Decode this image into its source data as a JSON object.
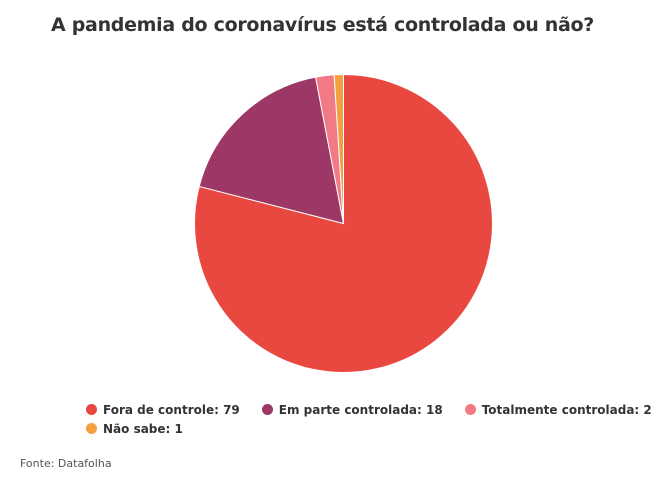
{
  "chart_data": {
    "type": "pie",
    "title": "A pandemia do coronavírus está controlada ou não?",
    "categories": [
      "Fora de controle",
      "Em parte controlada",
      "Totalmente controlada",
      "Não sabe"
    ],
    "values": [
      79,
      18,
      2,
      1
    ],
    "colors": [
      "#e8483f",
      "#9c3766",
      "#f27a85",
      "#f4a041"
    ],
    "legend_labels": [
      "Fora de controle: 79",
      "Em parte controlada: 18",
      "Totalmente controlada: 2",
      "Não sabe: 1"
    ],
    "legend_position": "bottom"
  },
  "source": "Fonte: Datafolha"
}
